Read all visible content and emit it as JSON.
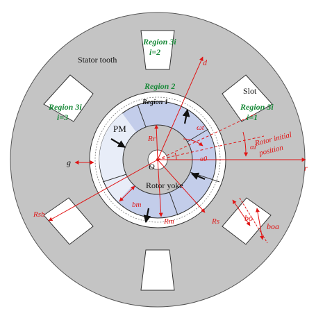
{
  "labels": {
    "stator_tooth": "Stator tooth",
    "slot": "Slot",
    "pm": "PM",
    "rotor_yoke": "Rotor yoke",
    "region1": "Region 1",
    "region2": "Region 2",
    "region3i": "Region 3i",
    "i1": "i=1",
    "i2": "i=2",
    "i3": "i=3",
    "g": "g",
    "o": "O",
    "d_axis": "d",
    "r_axis": "r",
    "rotor_initial_position_1": "Rotor initial",
    "rotor_initial_position_2": "position",
    "omega_t": "ωt",
    "alpha0": "α0",
    "alpha_i": "αi",
    "Rr": "Rr",
    "Rm": "Rm",
    "Rs": "Rs",
    "Rsb": "Rsb",
    "bm": "bm",
    "bo": "bo",
    "boa": "boa"
  },
  "colors": {
    "stator": "#c4c4c4",
    "pm": "#c3cdea",
    "rotor_yoke": "#c4c4c4",
    "annotation": "#e01515",
    "region_label": "#1a8a3a"
  }
}
